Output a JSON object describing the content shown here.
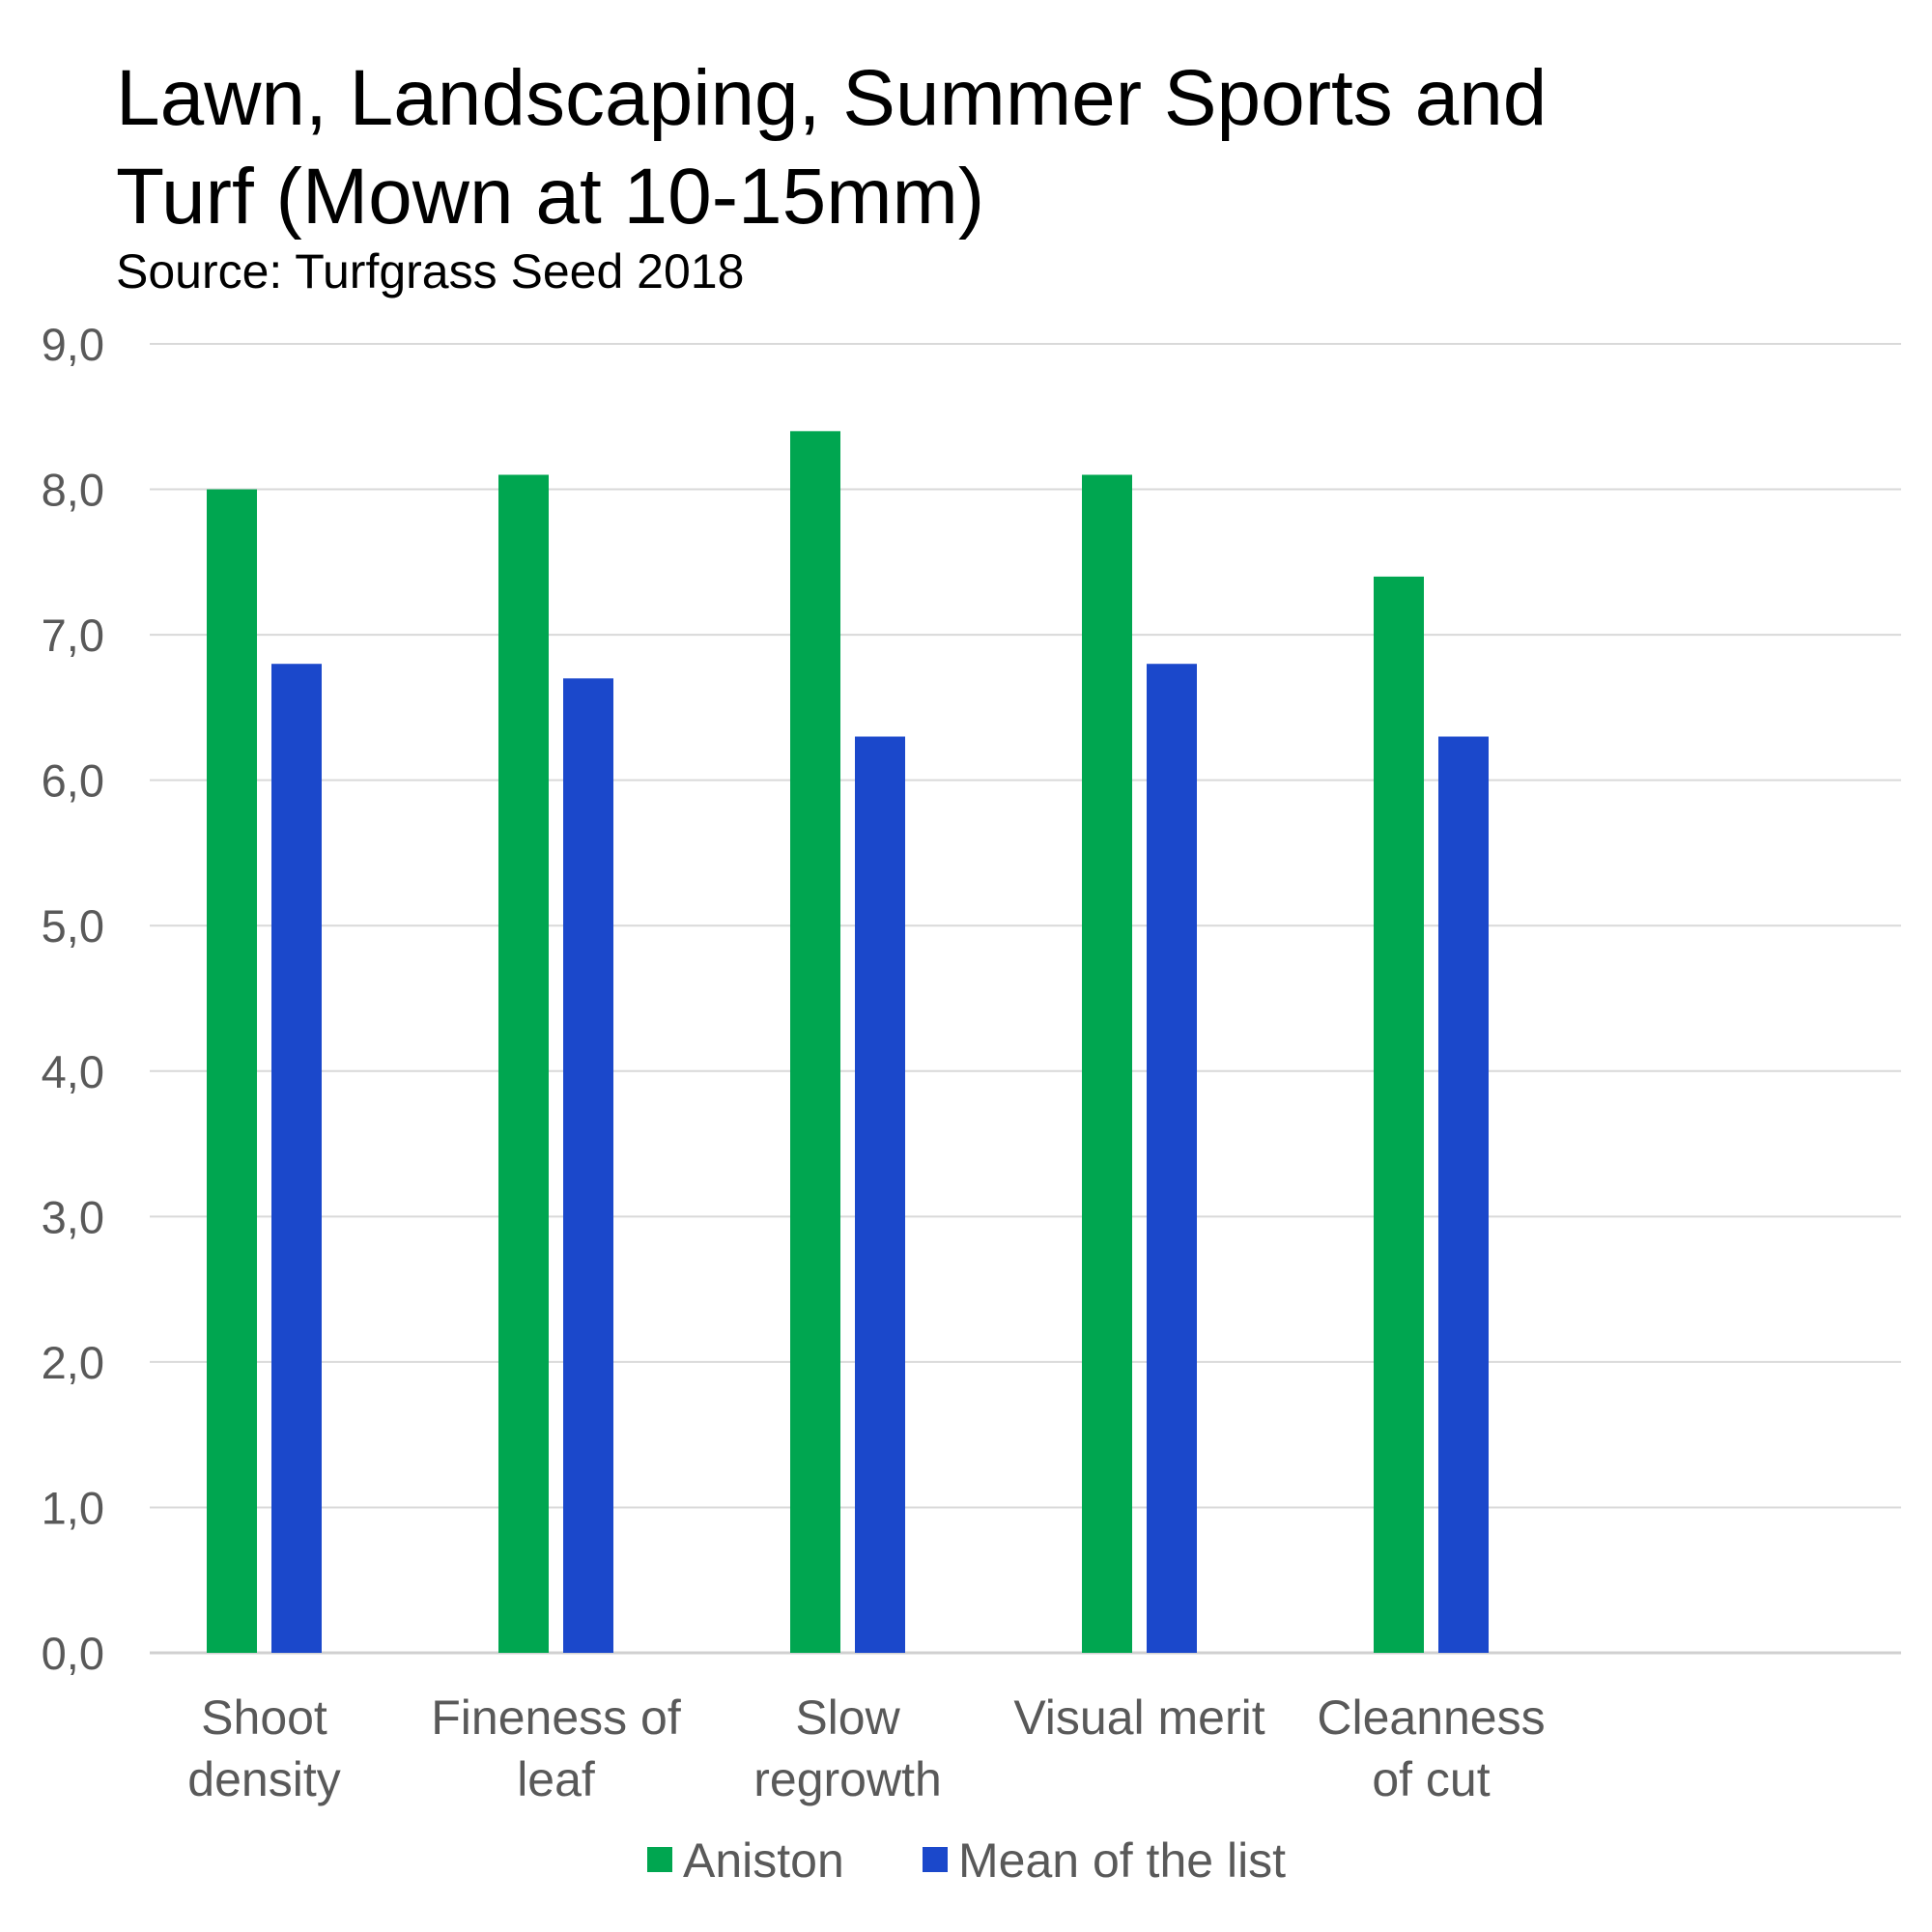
{
  "chart_data": {
    "type": "bar",
    "title_lines": [
      "Lawn, Landscaping, Summer Sports and",
      "Turf (Mown at 10-15mm)"
    ],
    "subtitle": "Source: Turfgrass Seed 2018",
    "categories": [
      [
        "Shoot",
        "density"
      ],
      [
        "Fineness of",
        "leaf"
      ],
      [
        "Slow",
        "regrowth"
      ],
      [
        "Visual merit"
      ],
      [
        "Cleanness",
        "of cut"
      ]
    ],
    "series": [
      {
        "name": "Aniston",
        "color": "#00A650",
        "values": [
          8.0,
          8.1,
          8.4,
          8.1,
          7.4
        ]
      },
      {
        "name": "Mean of the list",
        "color": "#1B48CB",
        "values": [
          6.8,
          6.7,
          6.3,
          6.8,
          6.3
        ]
      }
    ],
    "y_ticks": [
      "0,0",
      "1,0",
      "2,0",
      "3,0",
      "4,0",
      "5,0",
      "6,0",
      "7,0",
      "8,0",
      "9,0"
    ],
    "ylim": [
      0,
      9
    ],
    "grid": true,
    "legend_position": "bottom"
  }
}
